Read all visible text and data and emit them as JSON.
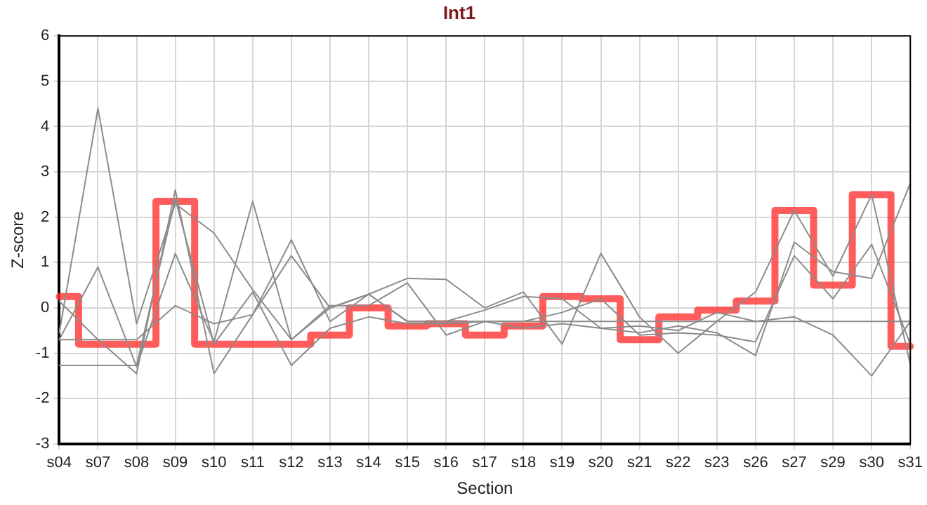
{
  "chart_data": {
    "type": "line",
    "title": "Int1",
    "xlabel": "Section",
    "ylabel": "Z-score",
    "categories": [
      "s04",
      "s07",
      "s08",
      "s09",
      "s10",
      "s11",
      "s12",
      "s13",
      "s14",
      "s15",
      "s16",
      "s17",
      "s18",
      "s19",
      "s20",
      "s21",
      "s22",
      "s23",
      "s26",
      "s27",
      "s29",
      "s30",
      "s31"
    ],
    "ylim": [
      -3,
      6
    ],
    "yticks": [
      -3,
      -2,
      -1,
      0,
      1,
      2,
      3,
      4,
      5,
      6
    ],
    "grid": true,
    "legend": false,
    "marker": "none",
    "series": [
      {
        "type": "line",
        "color": "#8c8c8c",
        "values": [
          -0.55,
          4.4,
          -0.35,
          2.3,
          1.65,
          0.4,
          -0.7,
          0.0,
          0.3,
          0.65,
          0.63,
          0.0,
          0.35,
          -0.8,
          1.2,
          -0.2,
          -1.0,
          -0.3,
          0.35,
          2.15,
          0.7,
          2.5,
          -1.25
        ]
      },
      {
        "type": "line",
        "color": "#8c8c8c",
        "values": [
          0.15,
          -0.7,
          -1.45,
          2.6,
          -1.45,
          -0.15,
          1.5,
          -0.3,
          0.3,
          -0.3,
          -0.3,
          -0.05,
          0.25,
          0.2,
          -0.45,
          -0.55,
          -0.4,
          -0.55,
          -1.05,
          1.45,
          0.8,
          0.65,
          2.75
        ]
      },
      {
        "type": "line",
        "color": "#8c8c8c",
        "values": [
          -0.7,
          0.9,
          -1.3,
          1.2,
          -0.75,
          2.35,
          -0.7,
          0.05,
          0.05,
          0.55,
          -0.6,
          -0.3,
          -0.3,
          -0.1,
          0.2,
          -0.6,
          -0.55,
          -0.6,
          -0.75,
          1.15,
          0.2,
          1.4,
          -0.8
        ]
      },
      {
        "type": "line",
        "color": "#8c8c8c",
        "values": [
          -1.27,
          -1.27,
          -1.27,
          2.4,
          -0.8,
          0.35,
          -1.27,
          -0.45,
          -0.2,
          -0.35,
          -0.35,
          -0.3,
          -0.45,
          -0.35,
          -0.45,
          -0.4,
          -0.5,
          -0.1,
          -0.3,
          -0.2,
          -0.6,
          -1.5,
          -0.3
        ]
      },
      {
        "type": "line",
        "color": "#8c8c8c",
        "values": [
          -0.7,
          -0.7,
          -0.7,
          0.05,
          -0.35,
          -0.15,
          1.15,
          0.0,
          0.3,
          -0.3,
          -0.3,
          -0.3,
          -0.3,
          -0.3,
          -0.3,
          -0.3,
          -0.3,
          -0.3,
          -0.3,
          -0.3,
          -0.3,
          -0.3,
          -0.3
        ]
      },
      {
        "type": "step",
        "color": "#ff3333",
        "values": [
          0.25,
          -0.8,
          -0.8,
          2.35,
          -0.8,
          -0.8,
          -0.8,
          -0.6,
          0.0,
          -0.4,
          -0.35,
          -0.6,
          -0.4,
          0.25,
          0.2,
          -0.7,
          -0.2,
          -0.05,
          0.15,
          2.15,
          0.5,
          2.5,
          -0.85
        ]
      }
    ]
  }
}
